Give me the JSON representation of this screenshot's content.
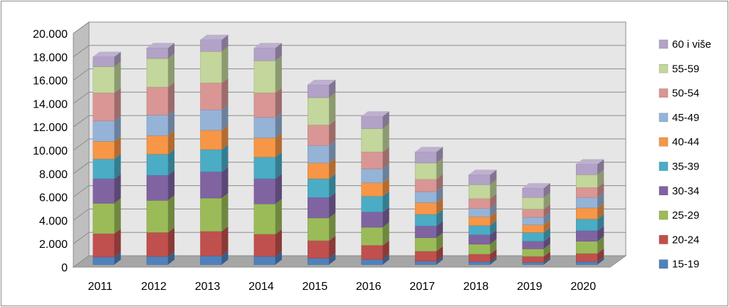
{
  "chart_data": {
    "type": "bar",
    "stacked": true,
    "three_d": true,
    "categories": [
      "2011",
      "2012",
      "2013",
      "2014",
      "2015",
      "2016",
      "2017",
      "2018",
      "2019",
      "2020"
    ],
    "ylim": [
      0,
      20000
    ],
    "yticks": [
      "0",
      "2.000",
      "4.000",
      "6.000",
      "8.000",
      "10.000",
      "12.000",
      "14.000",
      "16.000",
      "18.000",
      "20.000"
    ],
    "ytick_values": [
      0,
      2000,
      4000,
      6000,
      8000,
      10000,
      12000,
      14000,
      16000,
      18000,
      20000
    ],
    "grid": true,
    "legend_position": "right",
    "series": [
      {
        "name": "15-19",
        "color": "#4F81BD",
        "values": [
          650,
          700,
          750,
          700,
          550,
          450,
          300,
          250,
          200,
          250
        ]
      },
      {
        "name": "20-24",
        "color": "#C0504D",
        "values": [
          2000,
          2050,
          2100,
          1900,
          1500,
          1200,
          850,
          650,
          500,
          700
        ]
      },
      {
        "name": "25-29",
        "color": "#9BBB59",
        "values": [
          2600,
          2750,
          2850,
          2600,
          1950,
          1550,
          1150,
          850,
          650,
          1050
        ]
      },
      {
        "name": "30-34",
        "color": "#8064A2",
        "values": [
          2100,
          2150,
          2250,
          2150,
          1750,
          1300,
          1000,
          800,
          650,
          900
        ]
      },
      {
        "name": "35-39",
        "color": "#4BACC6",
        "values": [
          1700,
          1800,
          1900,
          1850,
          1600,
          1350,
          1000,
          800,
          750,
          1000
        ]
      },
      {
        "name": "40-44",
        "color": "#F79646",
        "values": [
          1500,
          1600,
          1650,
          1650,
          1350,
          1150,
          1000,
          750,
          650,
          950
        ]
      },
      {
        "name": "45-49",
        "color": "#95B3D7",
        "values": [
          1750,
          1750,
          1750,
          1750,
          1500,
          1200,
          950,
          700,
          650,
          900
        ]
      },
      {
        "name": "50-54",
        "color": "#D99694",
        "values": [
          2400,
          2400,
          2300,
          2100,
          1750,
          1450,
          1050,
          850,
          700,
          850
        ]
      },
      {
        "name": "55-59",
        "color": "#C3D69B",
        "values": [
          2250,
          2450,
          2700,
          2750,
          2350,
          2000,
          1400,
          1200,
          1000,
          1100
        ]
      },
      {
        "name": "60 i više",
        "color": "#B3A2C7",
        "values": [
          850,
          900,
          1000,
          1100,
          1100,
          1050,
          950,
          850,
          800,
          900
        ]
      }
    ]
  }
}
